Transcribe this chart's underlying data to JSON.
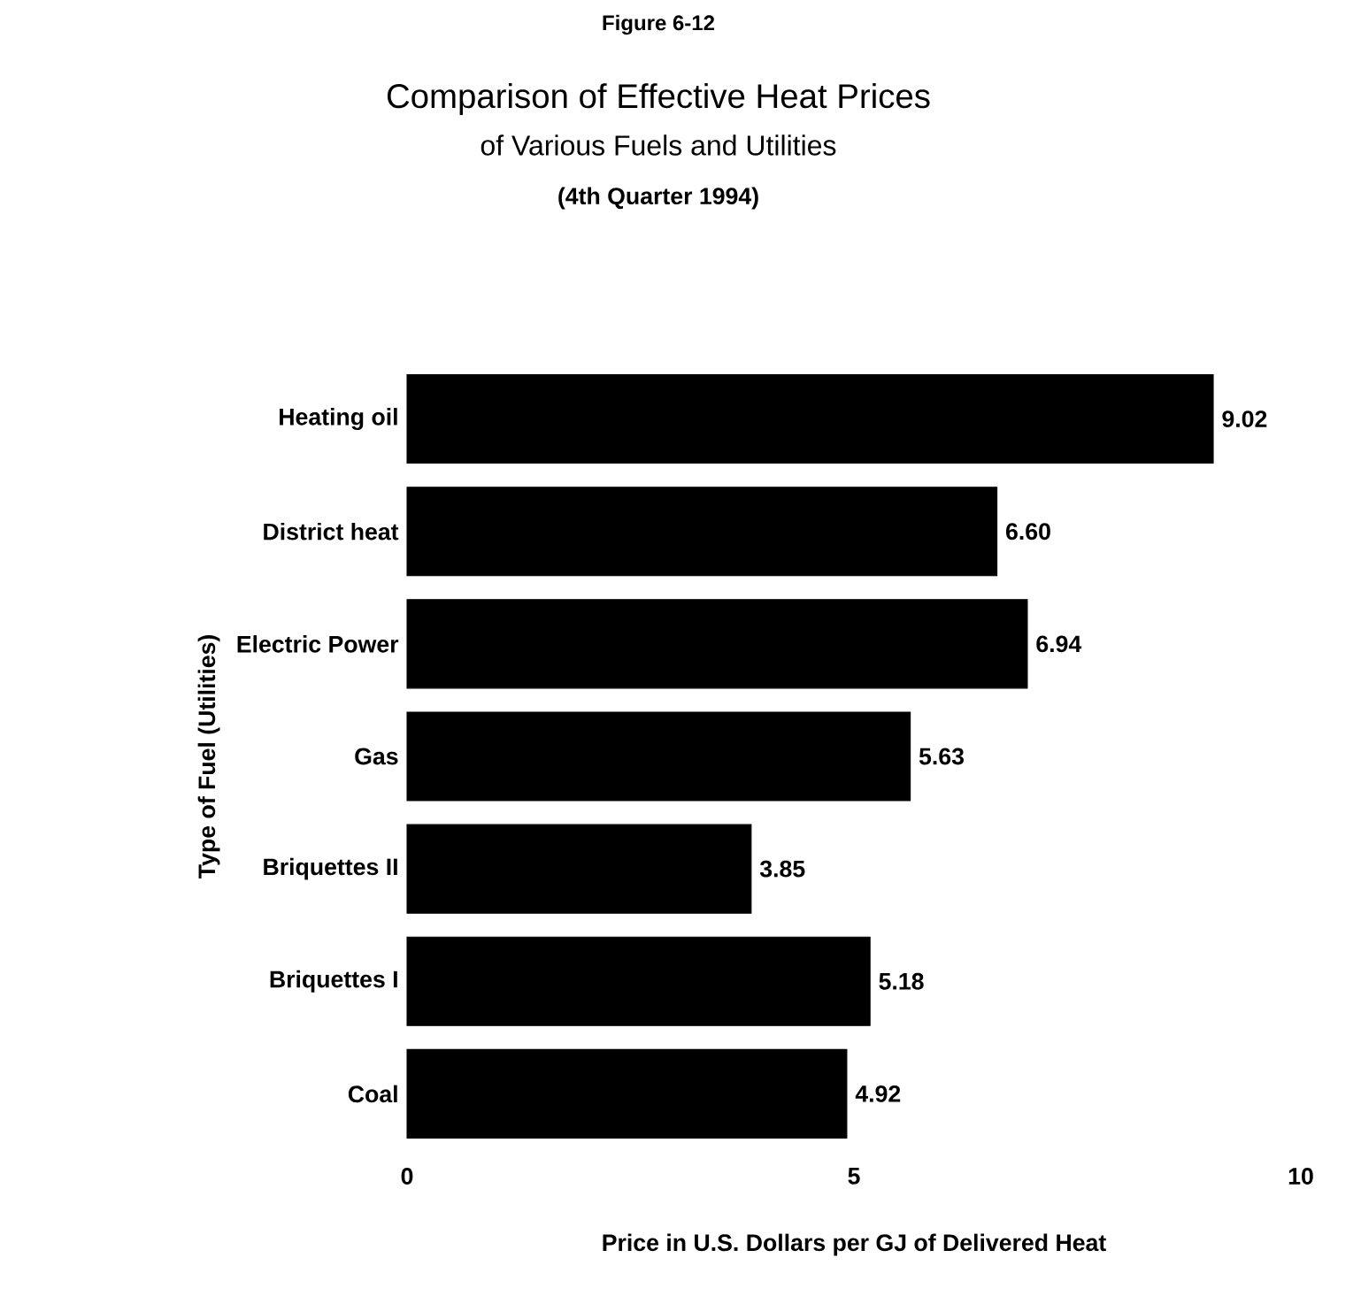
{
  "chart_data": {
    "type": "bar",
    "orientation": "horizontal",
    "title": "Comparison of Effective Heat Prices",
    "subtitle": "of Various Fuels and Utilities",
    "annotations": [
      "Figure 6-12",
      "(4th Quarter 1994)"
    ],
    "xlabel": "Price in U.S. Dollars per GJ of Delivered Heat",
    "ylabel": "Type of Fuel (Utilities)",
    "categories": [
      "Heating oil",
      "District heat",
      "Electric Power",
      "Gas",
      "Briquettes II",
      "Briquettes I",
      "Coal"
    ],
    "values": [
      9.02,
      6.6,
      6.94,
      5.63,
      3.85,
      5.18,
      4.92
    ],
    "value_labels": [
      "9.02",
      "6.60",
      "6.94",
      "5.63",
      "3.85",
      "5.18",
      "4.92"
    ],
    "color": "#000000",
    "xlim": [
      0,
      10
    ],
    "xticks": [
      0,
      5,
      10
    ]
  }
}
